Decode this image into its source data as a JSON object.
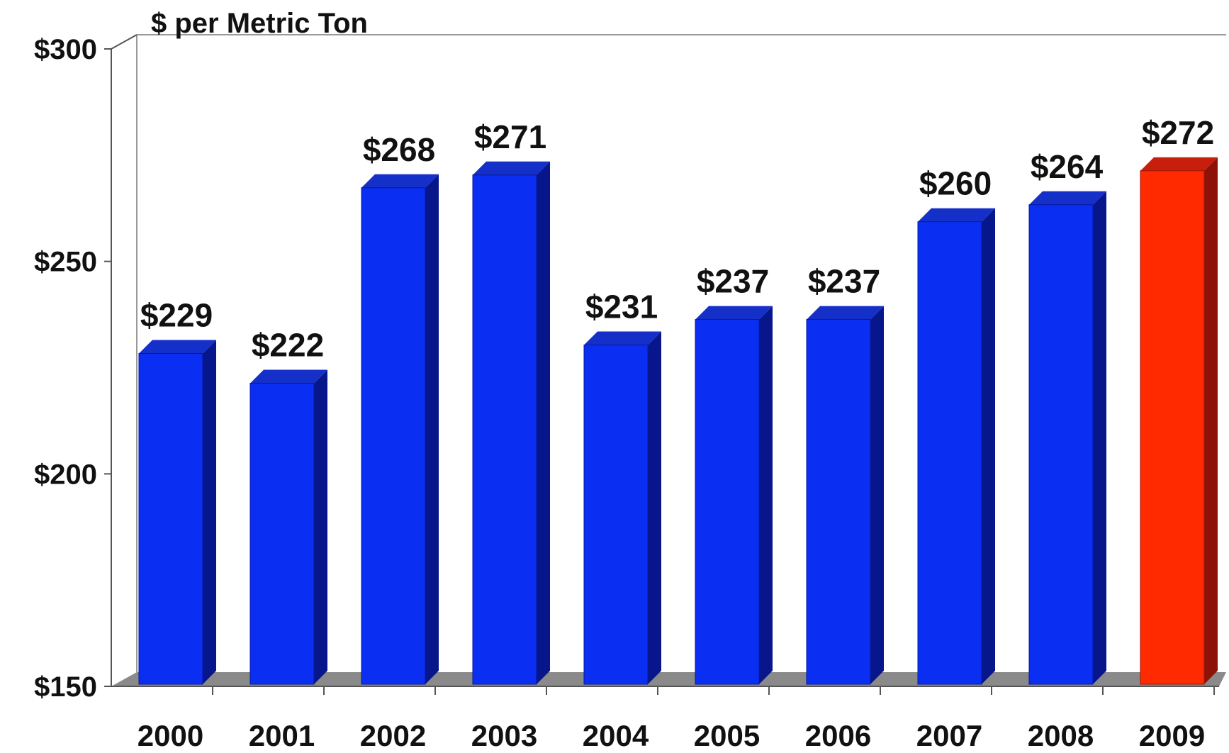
{
  "chart_data": {
    "type": "bar",
    "ylabel": "$ per Metric Ton",
    "categories": [
      "2000",
      "2001",
      "2002",
      "2003",
      "2004",
      "2005",
      "2006",
      "2007",
      "2008",
      "2009"
    ],
    "values": [
      229,
      222,
      268,
      271,
      231,
      237,
      237,
      260,
      264,
      272
    ],
    "value_labels": [
      "$229",
      "$222",
      "$268",
      "$271",
      "$231",
      "$237",
      "$237",
      "$260",
      "$264",
      "$272"
    ],
    "ylim": [
      150,
      300
    ],
    "yticks": [
      150,
      200,
      250,
      300
    ],
    "ytick_labels": [
      "$150",
      "$200",
      "$250",
      "$300"
    ],
    "grid": false,
    "legend": "none",
    "bar_style": "3d",
    "colors": {
      "bar": "#0a2ff2",
      "bar_side": "#07168a",
      "bar_top": "#1530c8",
      "highlight_bar": "#ff2a00",
      "highlight_side": "#8e1208",
      "highlight_top": "#c81e0c",
      "floor": "#8a8a8a",
      "axis": "#555555"
    },
    "highlight_index": 9
  }
}
